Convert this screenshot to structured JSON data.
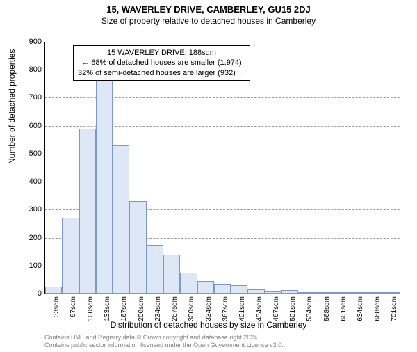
{
  "title": "15, WAVERLEY DRIVE, CAMBERLEY, GU15 2DJ",
  "subtitle": "Size of property relative to detached houses in Camberley",
  "y_axis_label": "Number of detached properties",
  "x_axis_label": "Distribution of detached houses by size in Camberley",
  "chart": {
    "type": "histogram",
    "ylim": [
      0,
      900
    ],
    "ytick_step": 100,
    "xlim": [
      0,
      21
    ],
    "bar_fill": "#dde7f6",
    "bar_border": "#7a98c9",
    "grid_color": "#999999",
    "ref_line_color": "#cc0000",
    "background_color": "#ffffff",
    "title_fontsize": 13,
    "subtitle_fontsize": 12,
    "axis_label_fontsize": 12,
    "tick_fontsize": 11,
    "categories": [
      "33sqm",
      "67sqm",
      "100sqm",
      "133sqm",
      "167sqm",
      "200sqm",
      "234sqm",
      "267sqm",
      "300sqm",
      "334sqm",
      "367sqm",
      "401sqm",
      "434sqm",
      "467sqm",
      "501sqm",
      "534sqm",
      "568sqm",
      "601sqm",
      "634sqm",
      "668sqm",
      "701sqm"
    ],
    "values": [
      25,
      270,
      590,
      780,
      530,
      330,
      175,
      140,
      75,
      45,
      35,
      30,
      15,
      8,
      12,
      4,
      3,
      2,
      2,
      2,
      2
    ],
    "ref_line_x": 4.65
  },
  "annotation": {
    "line1": "15 WAVERLEY DRIVE: 188sqm",
    "line2": "← 68% of detached houses are smaller (1,974)",
    "line3": "32% of semi-detached houses are larger (932) →",
    "fontsize": 11
  },
  "footer": {
    "line1": "Contains HM Land Registry data © Crown copyright and database right 2024.",
    "line2": "Contains public sector information licensed under the Open Government Licence v3.0.",
    "color": "#808080",
    "fontsize": 9
  }
}
